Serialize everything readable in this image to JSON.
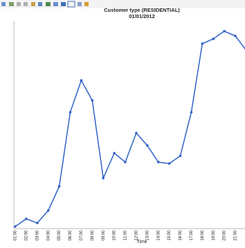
{
  "chart_data": {
    "type": "line",
    "title": "Customer type (RESIDENTIAL)",
    "subtitle": "01/01/2012",
    "x_label": "Time",
    "categories": [
      "01:00",
      "02:00",
      "03:00",
      "04:00",
      "05:00",
      "06:00",
      "07:00",
      "08:00",
      "09:00",
      "10:00",
      "11:00",
      "12:00",
      "13:00",
      "14:00",
      "15:00",
      "16:00",
      "17:00",
      "18:00",
      "19:00",
      "20:00",
      "21:00",
      null
    ],
    "series": [
      {
        "name": "RESIDENTIAL",
        "color": "#2f62c9",
        "values": [
          1.0,
          4.7,
          2.7,
          8.7,
          20.3,
          56,
          71.3,
          61.7,
          24.3,
          36.3,
          32,
          46,
          40,
          32,
          31.3,
          35,
          56,
          89,
          91.3,
          95,
          92.7,
          85.7
        ]
      }
    ],
    "ylim": [
      0,
      100
    ]
  }
}
